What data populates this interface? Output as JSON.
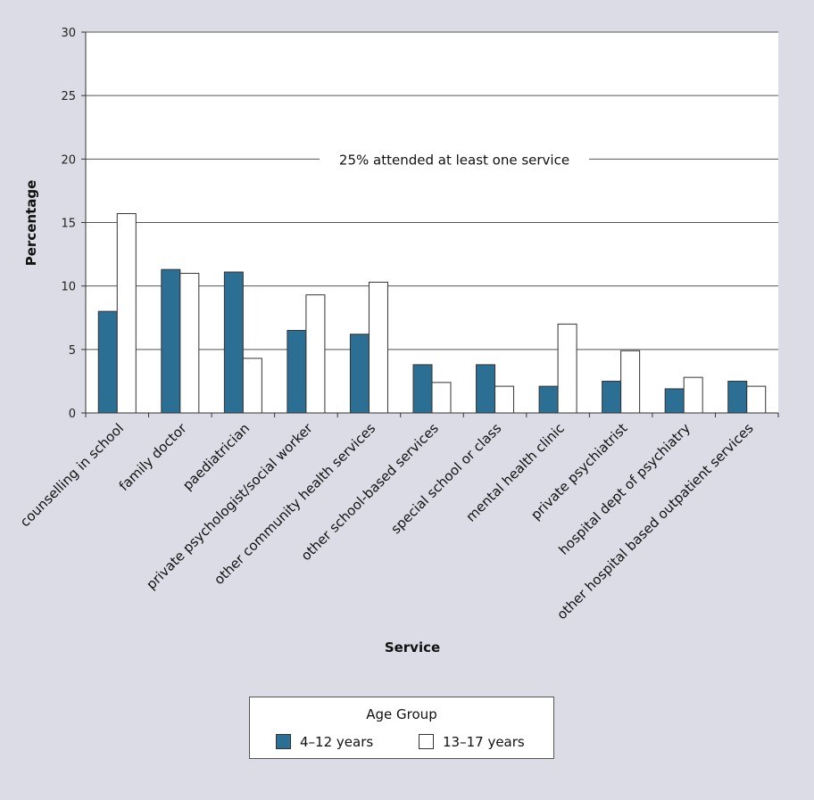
{
  "chart_data": {
    "type": "bar",
    "title": "",
    "xlabel": "Service",
    "ylabel": "Percentage",
    "ylim": [
      0,
      30
    ],
    "yticks": [
      0,
      5,
      10,
      15,
      20,
      25,
      30
    ],
    "grid": true,
    "categories": [
      "counselling in school",
      "family doctor",
      "paediatrician",
      "private psychologist/social worker",
      "other community health services",
      "other school-based services",
      "special school or class",
      "mental health clinic",
      "private psychiatrist",
      "hospital dept of psychiatry",
      "other hospital based outpatient services"
    ],
    "series": [
      {
        "name": "4–12 years",
        "color": "#2b6f95",
        "values": [
          8.0,
          11.3,
          11.1,
          6.5,
          6.2,
          3.8,
          3.8,
          2.1,
          2.5,
          1.9,
          2.5
        ]
      },
      {
        "name": "13–17 years",
        "color": "#ffffff",
        "values": [
          15.7,
          11.0,
          4.3,
          9.3,
          10.3,
          2.4,
          2.1,
          7.0,
          4.9,
          2.8,
          2.1
        ]
      }
    ],
    "annotation": "25% attended at least one service",
    "annotation_value": 20,
    "legend": {
      "title": "Age Group",
      "placement": "bottom"
    }
  }
}
